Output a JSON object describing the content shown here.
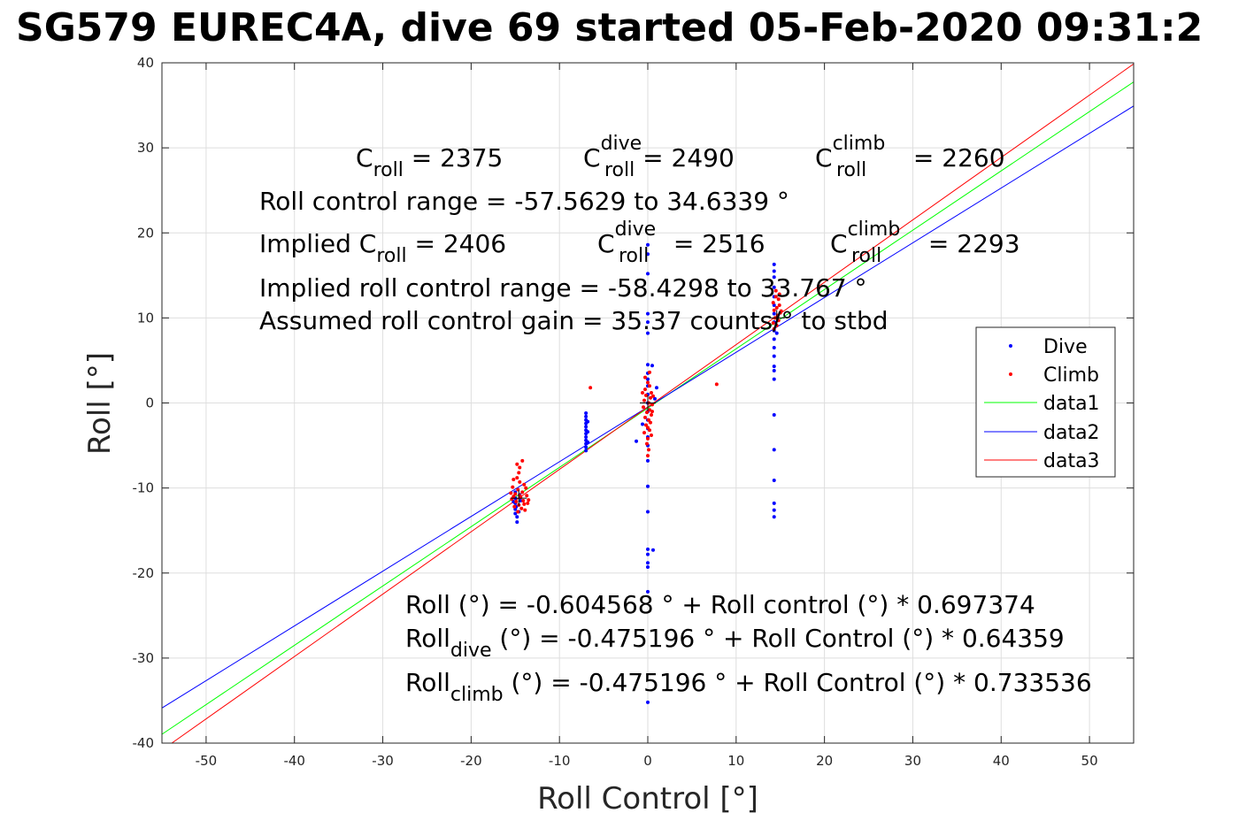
{
  "chart_data": {
    "type": "scatter",
    "title": "SG579 EUREC4A, dive 69 started 05-Feb-2020 09:31:2",
    "xlabel": "Roll Control [°]",
    "ylabel": "Roll [°]",
    "xlim": [
      -55,
      55
    ],
    "ylim": [
      -40,
      40
    ],
    "xticks": [
      -50,
      -40,
      -30,
      -20,
      -10,
      0,
      10,
      20,
      30,
      40,
      50
    ],
    "yticks": [
      -40,
      -30,
      -20,
      -10,
      0,
      10,
      20,
      30,
      40
    ],
    "grid": true,
    "legend_position": "right",
    "series": [
      {
        "name": "Dive",
        "kind": "points",
        "color": "#0000ff",
        "points": [
          [
            -15.0,
            -11.2
          ],
          [
            -15.0,
            -11.8
          ],
          [
            -15.0,
            -12.5
          ],
          [
            -15.0,
            -13.0
          ],
          [
            -15.0,
            -10.5
          ],
          [
            -14.9,
            -12.2
          ],
          [
            -14.8,
            -13.4
          ],
          [
            -14.8,
            -14.0
          ],
          [
            -15.2,
            -11.6
          ],
          [
            -14.6,
            -12.8
          ],
          [
            -14.5,
            -10.8
          ],
          [
            -14.4,
            -11.5
          ],
          [
            -7.0,
            -1.2
          ],
          [
            -7.0,
            -1.6
          ],
          [
            -7.0,
            -2.0
          ],
          [
            -7.0,
            -2.4
          ],
          [
            -7.0,
            -2.8
          ],
          [
            -7.0,
            -3.2
          ],
          [
            -7.0,
            -3.6
          ],
          [
            -7.0,
            -4.0
          ],
          [
            -7.0,
            -4.4
          ],
          [
            -7.0,
            -4.8
          ],
          [
            -7.0,
            -5.2
          ],
          [
            -7.0,
            -5.6
          ],
          [
            -6.8,
            -2.2
          ],
          [
            -6.8,
            -3.4
          ],
          [
            -6.8,
            -4.6
          ],
          [
            0.0,
            18.6
          ],
          [
            0.0,
            17.5
          ],
          [
            0.0,
            15.2
          ],
          [
            0.0,
            10.5
          ],
          [
            0.0,
            9.5
          ],
          [
            0.0,
            8.2
          ],
          [
            0.0,
            4.5
          ],
          [
            0.0,
            3.5
          ],
          [
            0.0,
            2.8
          ],
          [
            0.0,
            2.0
          ],
          [
            0.0,
            1.0
          ],
          [
            0.0,
            0.0
          ],
          [
            0.0,
            -1.0
          ],
          [
            0.0,
            -2.0
          ],
          [
            0.0,
            -3.0
          ],
          [
            0.0,
            -4.0
          ],
          [
            0.0,
            -5.0
          ],
          [
            0.0,
            -6.8
          ],
          [
            0.0,
            -9.8
          ],
          [
            0.0,
            -12.8
          ],
          [
            0.0,
            -17.2
          ],
          [
            0.0,
            -17.8
          ],
          [
            0.0,
            -18.8
          ],
          [
            0.0,
            -19.3
          ],
          [
            0.0,
            -22.2
          ],
          [
            0.0,
            -35.2
          ],
          [
            0.6,
            -17.3
          ],
          [
            0.5,
            4.4
          ],
          [
            1.0,
            1.8
          ],
          [
            -1.3,
            -4.5
          ],
          [
            -0.6,
            -2.5
          ],
          [
            0.8,
            0.5
          ],
          [
            14.3,
            16.3
          ],
          [
            14.3,
            15.5
          ],
          [
            14.3,
            14.8
          ],
          [
            14.3,
            13.6
          ],
          [
            14.3,
            12.5
          ],
          [
            14.3,
            11.5
          ],
          [
            14.3,
            10.5
          ],
          [
            14.3,
            9.5
          ],
          [
            14.3,
            8.5
          ],
          [
            14.3,
            7.5
          ],
          [
            14.3,
            6.5
          ],
          [
            14.3,
            5.5
          ],
          [
            14.3,
            4.3
          ],
          [
            14.3,
            3.8
          ],
          [
            14.3,
            2.8
          ],
          [
            14.3,
            -1.4
          ],
          [
            14.3,
            -5.5
          ],
          [
            14.3,
            -9.1
          ],
          [
            14.3,
            -11.8
          ],
          [
            14.3,
            -12.6
          ],
          [
            14.3,
            -13.4
          ],
          [
            14.6,
            10.0
          ],
          [
            14.6,
            8.2
          ]
        ]
      },
      {
        "name": "Climb",
        "kind": "points",
        "color": "#ff0000",
        "points": [
          [
            -14.2,
            -6.8
          ],
          [
            -14.8,
            -7.2
          ],
          [
            -14.5,
            -7.6
          ],
          [
            -14.6,
            -8.2
          ],
          [
            -14.8,
            -8.8
          ],
          [
            -15.2,
            -9.0
          ],
          [
            -14.5,
            -9.3
          ],
          [
            -14.0,
            -9.6
          ],
          [
            -15.3,
            -9.9
          ],
          [
            -14.7,
            -10.2
          ],
          [
            -14.2,
            -10.5
          ],
          [
            -15.0,
            -10.7
          ],
          [
            -13.7,
            -10.9
          ],
          [
            -14.4,
            -11.1
          ],
          [
            -15.4,
            -11.3
          ],
          [
            -14.1,
            -11.5
          ],
          [
            -14.9,
            -11.6
          ],
          [
            -13.6,
            -11.8
          ],
          [
            -14.6,
            -12.0
          ],
          [
            -15.1,
            -12.2
          ],
          [
            -14.3,
            -12.4
          ],
          [
            -13.9,
            -12.6
          ],
          [
            -14.7,
            -12.8
          ],
          [
            -15.2,
            -11.0
          ],
          [
            -13.8,
            -10.0
          ],
          [
            -14.5,
            -10.9
          ],
          [
            -14.0,
            -11.9
          ],
          [
            -15.5,
            -10.6
          ],
          [
            -13.5,
            -11.4
          ],
          [
            -6.5,
            1.8
          ],
          [
            7.8,
            2.2
          ],
          [
            0.0,
            2.4
          ],
          [
            0.2,
            2.0
          ],
          [
            -0.3,
            1.6
          ],
          [
            0.4,
            1.2
          ],
          [
            -0.2,
            0.9
          ],
          [
            0.3,
            0.6
          ],
          [
            -0.4,
            0.3
          ],
          [
            0.1,
            0.0
          ],
          [
            0.5,
            -0.2
          ],
          [
            -0.5,
            -0.5
          ],
          [
            0.2,
            -0.8
          ],
          [
            -0.1,
            -1.1
          ],
          [
            0.4,
            -1.4
          ],
          [
            -0.3,
            -1.7
          ],
          [
            0.1,
            -2.0
          ],
          [
            0.3,
            -2.3
          ],
          [
            -0.2,
            -2.6
          ],
          [
            0.0,
            -2.9
          ],
          [
            0.2,
            -3.2
          ],
          [
            -0.4,
            -3.5
          ],
          [
            0.4,
            -3.8
          ],
          [
            0.0,
            -4.2
          ],
          [
            -0.1,
            -4.8
          ],
          [
            0.1,
            -5.5
          ],
          [
            0.0,
            -6.2
          ],
          [
            0.6,
            0.8
          ],
          [
            -0.6,
            1.2
          ],
          [
            0.5,
            -1.0
          ],
          [
            -0.3,
            3.0
          ],
          [
            0.2,
            3.6
          ],
          [
            14.5,
            12.5
          ],
          [
            14.8,
            12.2
          ],
          [
            14.2,
            11.8
          ],
          [
            14.9,
            11.5
          ],
          [
            14.6,
            11.2
          ],
          [
            14.3,
            10.9
          ],
          [
            15.0,
            10.6
          ],
          [
            14.7,
            10.3
          ],
          [
            14.4,
            10.0
          ],
          [
            14.8,
            9.7
          ],
          [
            14.2,
            9.4
          ],
          [
            14.6,
            9.1
          ],
          [
            15.1,
            10.8
          ],
          [
            14.9,
            12.8
          ],
          [
            14.5,
            13.2
          ],
          [
            14.3,
            8.7
          ]
        ]
      },
      {
        "name": "data1",
        "kind": "line",
        "color": "#00ff00",
        "slope": 0.697374,
        "intercept": -0.604568
      },
      {
        "name": "data2",
        "kind": "line",
        "color": "#0000ff",
        "slope": 0.64359,
        "intercept": -0.475196
      },
      {
        "name": "data3",
        "kind": "line",
        "color": "#ff0000",
        "slope": 0.733536,
        "intercept": -0.475196
      }
    ],
    "markers": [
      [
        -14.6,
        -11.2
      ],
      [
        0.0,
        0.0
      ],
      [
        14.6,
        10.0
      ]
    ]
  },
  "annotations": {
    "croll": {
      "base": "C",
      "sub": "roll",
      "value": " = 2375"
    },
    "croll_dive": {
      "base": "C",
      "sup": "dive",
      "sub": "roll",
      "value": " = 2490"
    },
    "croll_climb": {
      "base": "C",
      "sup": "climb",
      "sub": "roll",
      "value": " = 2260"
    },
    "range": "Roll control range = -57.5629 to 34.6339 °",
    "implied_croll": {
      "prefix": "Implied ",
      "base": "C",
      "sub": "roll",
      "value": " = 2406"
    },
    "implied_croll_dive": {
      "base": "C",
      "sup": "dive",
      "sub": "roll",
      "value": " = 2516"
    },
    "implied_croll_climb": {
      "base": "C",
      "sup": "climb",
      "sub": "roll",
      "value": " = 2293"
    },
    "implied_range": "Implied roll control range = -58.4298 to 33.767 °",
    "gain": "Assumed roll control gain = 35.37 counts/° to stbd",
    "fit_all": "Roll (°) = -0.604568 ° + Roll control (°) * 0.697374",
    "fit_dive": {
      "base": "Roll",
      "sub": "dive",
      "value": " (°) = -0.475196 ° + Roll Control (°) * 0.64359"
    },
    "fit_climb": {
      "base": "Roll",
      "sub": "climb",
      "value": " (°) = -0.475196 ° + Roll Control (°) * 0.733536"
    }
  }
}
